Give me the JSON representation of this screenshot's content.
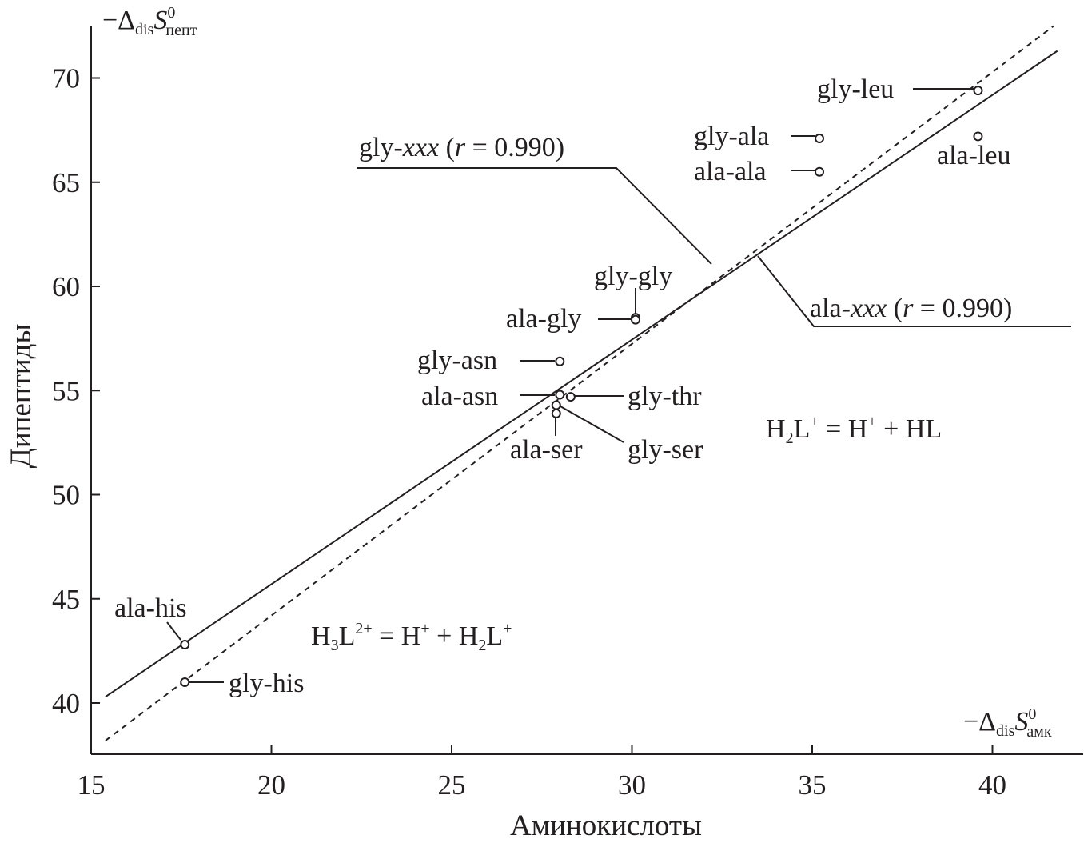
{
  "chart_data": {
    "type": "scatter",
    "xlabel": "Аминокислоты",
    "ylabel": "Дипептиды",
    "x_symbol": {
      "prefix": "−Δ",
      "sub1": "dis",
      "main": "S",
      "sup": "0",
      "sub2": "амк"
    },
    "y_symbol": {
      "prefix": "−Δ",
      "sub1": "dis",
      "main": "S",
      "sup": "0",
      "sub2": "пепт"
    },
    "xlim": [
      15,
      42.5
    ],
    "ylim": [
      37.5,
      72.5
    ],
    "x_ticks": [
      15,
      20,
      25,
      30,
      35,
      40
    ],
    "y_ticks": [
      40,
      45,
      50,
      55,
      60,
      65,
      70
    ],
    "grid": false,
    "points": [
      {
        "label": "gly-leu",
        "x": 39.6,
        "y": 69.4
      },
      {
        "label": "ala-leu",
        "x": 39.6,
        "y": 67.2
      },
      {
        "label": "gly-ala",
        "x": 35.2,
        "y": 67.1
      },
      {
        "label": "ala-ala",
        "x": 35.2,
        "y": 65.5
      },
      {
        "label": "gly-gly",
        "x": 30.1,
        "y": 58.5
      },
      {
        "label": "ala-gly",
        "x": 30.1,
        "y": 58.4
      },
      {
        "label": "gly-asn",
        "x": 28.0,
        "y": 56.4
      },
      {
        "label": "ala-asn",
        "x": 28.0,
        "y": 54.8
      },
      {
        "label": "gly-thr",
        "x": 28.3,
        "y": 54.7
      },
      {
        "label": "gly-ser",
        "x": 27.9,
        "y": 54.3
      },
      {
        "label": "ala-ser",
        "x": 27.9,
        "y": 53.9
      },
      {
        "label": "ala-his",
        "x": 17.6,
        "y": 42.8
      },
      {
        "label": "gly-his",
        "x": 17.6,
        "y": 41.0
      }
    ],
    "series": [
      {
        "group": "gly-xxx",
        "r": "0.990",
        "style": "dashed",
        "x": [
          15.4,
          41.7
        ],
        "y": [
          38.2,
          72.5
        ]
      },
      {
        "group": "ala-xxx",
        "r": "0.990",
        "style": "solid",
        "x": [
          15.4,
          41.8
        ],
        "y": [
          40.3,
          71.3
        ]
      }
    ],
    "line_labels": {
      "gly": {
        "name": "gly-",
        "var": "xxx",
        "open": " (",
        "r": "r",
        "eq": " = 0.990)"
      },
      "ala": {
        "name": "ala-",
        "var": "xxx",
        "open": " (",
        "r": "r",
        "eq": " = 0.990)"
      }
    },
    "equations": {
      "upper": {
        "a": "H",
        "a_sub": "2",
        "b": "L",
        "b_sup": "+",
        "rest": " = H",
        "c_sup": "+",
        "tail": " + HL"
      },
      "lower": {
        "a": "H",
        "a_sub": "3",
        "b": "L",
        "b_sup": "2+",
        "rest": " = H",
        "c_sup": "+",
        "mid": " + H",
        "d_sub": "2",
        "e": "L",
        "e_sup": "+"
      }
    }
  }
}
